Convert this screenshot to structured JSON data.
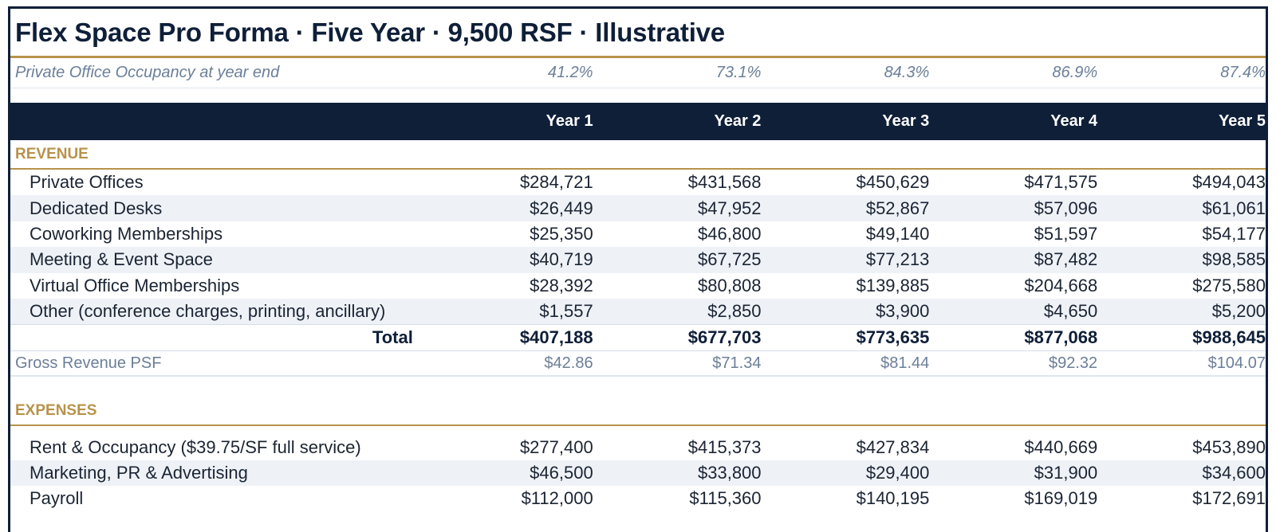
{
  "title": "Flex Space Pro Forma · Five Year · 9,500 RSF · Illustrative",
  "occupancy": {
    "label": "Private Office Occupancy at year end",
    "values": [
      "41.2%",
      "73.1%",
      "84.3%",
      "86.9%",
      "87.4%"
    ]
  },
  "columns": [
    "Year 1",
    "Year 2",
    "Year 3",
    "Year 4",
    "Year 5"
  ],
  "revenue": {
    "section_label": "REVENUE",
    "rows": [
      {
        "label": "Private Offices",
        "values": [
          "$284,721",
          "$431,568",
          "$450,629",
          "$471,575",
          "$494,043"
        ]
      },
      {
        "label": "Dedicated Desks",
        "values": [
          "$26,449",
          "$47,952",
          "$52,867",
          "$57,096",
          "$61,061"
        ]
      },
      {
        "label": "Coworking Memberships",
        "values": [
          "$25,350",
          "$46,800",
          "$49,140",
          "$51,597",
          "$54,177"
        ]
      },
      {
        "label": "Meeting & Event Space",
        "values": [
          "$40,719",
          "$67,725",
          "$77,213",
          "$87,482",
          "$98,585"
        ]
      },
      {
        "label": "Virtual Office Memberships",
        "values": [
          "$28,392",
          "$80,808",
          "$139,885",
          "$204,668",
          "$275,580"
        ]
      },
      {
        "label": "Other (conference charges, printing, ancillary)",
        "values": [
          "$1,557",
          "$2,850",
          "$3,900",
          "$4,650",
          "$5,200"
        ]
      }
    ],
    "total": {
      "label": "Total",
      "values": [
        "$407,188",
        "$677,703",
        "$773,635",
        "$877,068",
        "$988,645"
      ]
    },
    "psf": {
      "label": "Gross Revenue PSF",
      "values": [
        "$42.86",
        "$71.34",
        "$81.44",
        "$92.32",
        "$104.07"
      ]
    }
  },
  "expenses": {
    "section_label": "EXPENSES",
    "rows": [
      {
        "label": "Rent & Occupancy ($39.75/SF full service)",
        "values": [
          "$277,400",
          "$415,373",
          "$427,834",
          "$440,669",
          "$453,890"
        ]
      },
      {
        "label": "Marketing, PR & Advertising",
        "values": [
          "$46,500",
          "$33,800",
          "$29,400",
          "$31,900",
          "$34,600"
        ]
      },
      {
        "label": "Payroll",
        "values": [
          "$112,000",
          "$115,360",
          "$140,195",
          "$169,019",
          "$172,691"
        ]
      }
    ]
  }
}
